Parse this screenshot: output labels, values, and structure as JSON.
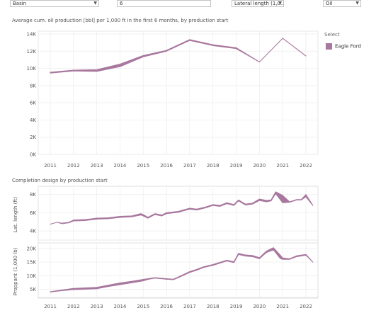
{
  "filters": {
    "basin": {
      "value": "Basin"
    },
    "months": {
      "value": "6"
    },
    "lateral": {
      "value": "Lateral length (1,0..."
    },
    "fluid": {
      "value": "Oil"
    }
  },
  "legend": {
    "title": "Select",
    "items": [
      {
        "label": "Eagle Ford",
        "color": "#a8789e"
      }
    ]
  },
  "colors": {
    "series": "#a8789e",
    "grid": "#ececec",
    "axis_text": "#555555"
  },
  "chart_data": [
    {
      "type": "area",
      "title": "Average cum. oil production [bbl] per 1,000 ft in the first 6 months, by production start",
      "x": [
        2011,
        2012,
        2013,
        2014,
        2015,
        2016,
        2017,
        2018,
        2019,
        2020,
        2021,
        2022
      ],
      "x_tick_labels": [
        "2011",
        "2012",
        "2013",
        "2014",
        "2015",
        "2016",
        "2017",
        "2018",
        "2019",
        "2020",
        "2021",
        "2022"
      ],
      "band_x": [
        2011,
        2012,
        2013,
        2014,
        2015,
        2016,
        2017,
        2018,
        2019,
        2020,
        2021,
        2022
      ],
      "band_low": [
        9450,
        9700,
        9650,
        10200,
        11350,
        12000,
        13250,
        12650,
        12300,
        10750,
        13500,
        11450
      ],
      "band_high": [
        9550,
        9800,
        9850,
        10500,
        11500,
        12100,
        13350,
        12750,
        12400,
        10750,
        13500,
        11450
      ],
      "series": [
        {
          "name": "Eagle Ford"
        }
      ],
      "ylim": [
        0,
        14000
      ],
      "y_ticks": [
        0,
        2000,
        4000,
        6000,
        8000,
        10000,
        12000,
        14000
      ],
      "y_tick_labels": [
        "0K",
        "2K",
        "4K",
        "6K",
        "8K",
        "10K",
        "12K",
        "14K"
      ],
      "grid": true
    },
    {
      "type": "area",
      "title": "Completion design by production start",
      "ylabel": "Lat. length (ft)",
      "x_tick_labels": [
        "2011",
        "2012",
        "2013",
        "2014",
        "2015",
        "2016",
        "2017",
        "2018",
        "2019",
        "2020",
        "2021",
        "2022"
      ],
      "band_x": [
        2011.0,
        2011.3,
        2011.5,
        2011.8,
        2012.0,
        2012.5,
        2013.0,
        2013.5,
        2014.0,
        2014.5,
        2014.9,
        2015.0,
        2015.2,
        2015.5,
        2015.8,
        2016.0,
        2016.5,
        2017.0,
        2017.3,
        2017.7,
        2018.0,
        2018.3,
        2018.6,
        2018.9,
        2019.1,
        2019.4,
        2019.7,
        2020.0,
        2020.3,
        2020.5,
        2020.7,
        2021.0,
        2021.3,
        2021.6,
        2021.8,
        2022.0,
        2022.3
      ],
      "band_low": [
        4750,
        4950,
        4800,
        4900,
        5100,
        5150,
        5300,
        5350,
        5500,
        5550,
        5750,
        5650,
        5400,
        5800,
        5650,
        5900,
        6050,
        6400,
        6300,
        6550,
        6800,
        6700,
        7000,
        6800,
        7300,
        6850,
        6950,
        7350,
        7200,
        7300,
        8100,
        7100,
        7150,
        7400,
        7400,
        7750,
        6800
      ],
      "band_high": [
        4750,
        4950,
        4850,
        4950,
        5200,
        5250,
        5400,
        5450,
        5600,
        5650,
        5900,
        5800,
        5500,
        5900,
        5750,
        6000,
        6150,
        6500,
        6400,
        6650,
        6900,
        6800,
        7100,
        6900,
        7400,
        6950,
        7050,
        7500,
        7350,
        7400,
        8300,
        7900,
        7200,
        7450,
        7450,
        8000,
        6800
      ],
      "ylim": [
        3000,
        8600
      ],
      "y_ticks": [
        4000,
        6000,
        8000
      ],
      "y_tick_labels": [
        "4K",
        "6K",
        "8K"
      ],
      "grid": true
    },
    {
      "type": "area",
      "ylabel": "Proppant (1,000 lb)",
      "x_tick_labels": [
        "2011",
        "2012",
        "2013",
        "2014",
        "2015",
        "2016",
        "2017",
        "2018",
        "2019",
        "2020",
        "2021",
        "2022"
      ],
      "band_x": [
        2011.0,
        2011.5,
        2012.0,
        2012.5,
        2013.0,
        2013.5,
        2014.0,
        2014.5,
        2015.0,
        2015.2,
        2015.5,
        2016.0,
        2016.3,
        2016.7,
        2017.0,
        2017.3,
        2017.6,
        2018.0,
        2018.3,
        2018.6,
        2018.9,
        2019.1,
        2019.4,
        2019.7,
        2020.0,
        2020.3,
        2020.6,
        2020.9,
        2021.0,
        2021.3,
        2021.6,
        2022.0,
        2022.3
      ],
      "band_low": [
        4000,
        4500,
        4900,
        5000,
        5200,
        6000,
        6700,
        7400,
        8100,
        8600,
        9100,
        8700,
        8500,
        10000,
        11200,
        12000,
        13000,
        13800,
        14600,
        15400,
        14800,
        17800,
        17200,
        17000,
        16200,
        18500,
        19500,
        16300,
        16000,
        16000,
        17000,
        17500,
        15000
      ],
      "band_high": [
        4100,
        4700,
        5300,
        5500,
        5700,
        6500,
        7300,
        7900,
        8600,
        8900,
        9300,
        8900,
        8700,
        10300,
        11500,
        12300,
        13300,
        14100,
        14900,
        15700,
        15100,
        18200,
        17600,
        17400,
        16600,
        19000,
        20300,
        17500,
        16500,
        16200,
        17300,
        17800,
        15000
      ],
      "ylim": [
        2000,
        21000
      ],
      "y_ticks": [
        5000,
        10000,
        15000,
        20000
      ],
      "y_tick_labels": [
        "5K",
        "10K",
        "15K",
        "20K"
      ],
      "grid": true
    }
  ]
}
